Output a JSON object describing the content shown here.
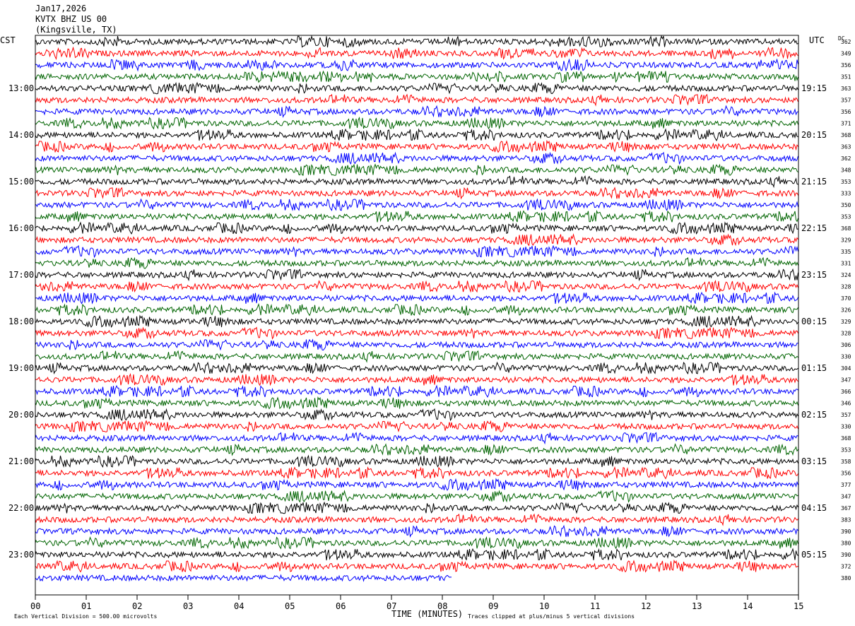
{
  "header": {
    "date": "Jan17,2026",
    "station": "KVTX BHZ US 00",
    "location": "(Kingsville, TX)",
    "left_tz": "CST",
    "right_tz": "UTC",
    "dc_label": "DC"
  },
  "chart_data": {
    "type": "line",
    "title": "KVTX BHZ US 00 (Kingsville, TX)",
    "xlabel": "TIME (MINUTES)",
    "x_ticks": [
      "00",
      "01",
      "02",
      "03",
      "04",
      "05",
      "06",
      "07",
      "08",
      "09",
      "10",
      "11",
      "12",
      "13",
      "14",
      "15"
    ],
    "xlim": [
      0,
      15
    ],
    "left_hour_labels": [
      "13:00",
      "14:00",
      "15:00",
      "16:00",
      "17:00",
      "18:00",
      "19:00",
      "20:00",
      "21:00",
      "22:00",
      "23:00"
    ],
    "right_hour_labels": [
      "19:15",
      "20:15",
      "21:15",
      "22:15",
      "23:15",
      "00:15",
      "01:15",
      "02:15",
      "03:15",
      "04:15",
      "05:15"
    ],
    "trace_colors": [
      "#000000",
      "#ff0000",
      "#0000ff",
      "#006400"
    ],
    "dc_offsets": [
      "362",
      "349",
      "356",
      "351",
      "363",
      "357",
      "356",
      "371",
      "368",
      "363",
      "362",
      "348",
      "353",
      "333",
      "350",
      "353",
      "368",
      "329",
      "335",
      "331",
      "324",
      "328",
      "370",
      "326",
      "329",
      "328",
      "306",
      "330",
      "304",
      "347",
      "366",
      "346",
      "357",
      "330",
      "368",
      "353",
      "358",
      "356",
      "377",
      "347",
      "367",
      "383",
      "390",
      "380",
      "390",
      "372",
      "380"
    ],
    "last_trace_end_minute": 8.2,
    "footer_left": "Each Vertical Division =  500.00 microvolts",
    "footer_right": "Traces clipped at plus/minus 5 vertical divisions"
  }
}
